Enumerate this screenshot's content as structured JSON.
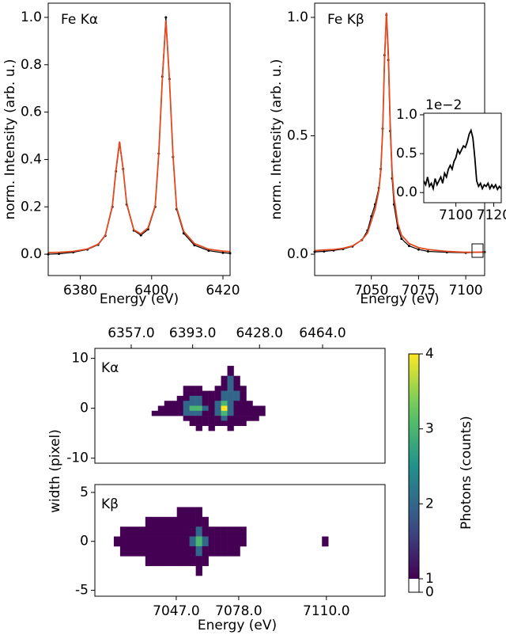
{
  "chart_data": [
    {
      "type": "line",
      "title": "Fe Kα",
      "xlabel": "Energy (eV)",
      "ylabel": "norm. Intensity (arb. u.)",
      "x": [
        6371,
        6374,
        6378,
        6382,
        6385,
        6387,
        6389,
        6390,
        6391,
        6392,
        6393,
        6395,
        6397,
        6399,
        6401,
        6402,
        6403,
        6404,
        6405,
        6406,
        6407,
        6409,
        6412,
        6416,
        6420,
        6422
      ],
      "series": [
        {
          "color": "#000000",
          "marker": "dot",
          "values": [
            0.0,
            0.002,
            0.008,
            0.02,
            0.04,
            0.078,
            0.2,
            0.35,
            0.465,
            0.36,
            0.21,
            0.1,
            0.08,
            0.105,
            0.2,
            0.425,
            0.75,
            1.0,
            0.74,
            0.41,
            0.19,
            0.088,
            0.038,
            0.015,
            0.006,
            0.004
          ]
        },
        {
          "color": "#e34a21",
          "values": [
            0.007,
            0.008,
            0.012,
            0.022,
            0.042,
            0.08,
            0.205,
            0.356,
            0.476,
            0.361,
            0.215,
            0.103,
            0.086,
            0.111,
            0.204,
            0.422,
            0.737,
            0.988,
            0.735,
            0.417,
            0.197,
            0.096,
            0.045,
            0.021,
            0.013,
            0.011
          ]
        }
      ],
      "xlim": [
        6371,
        6422
      ],
      "ylim": [
        -0.09,
        1.06
      ],
      "xticks": [
        6380,
        6400,
        6420
      ],
      "yticks": [
        {
          "value": 0,
          "label": "0.0"
        },
        0.2,
        0.4,
        0.6,
        0.8,
        {
          "value": 1,
          "label": "1.0"
        }
      ]
    },
    {
      "type": "line",
      "title": "Fe Kβ",
      "xlabel": "Energy (eV)",
      "ylabel": "norm. Intensity (arb. u.)",
      "x": [
        7020,
        7025,
        7030,
        7035,
        7040,
        7045,
        7048,
        7050,
        7052,
        7054,
        7055,
        7056,
        7057,
        7058,
        7059,
        7060,
        7061,
        7062,
        7064,
        7066,
        7070,
        7075,
        7080,
        7090,
        7100,
        7110
      ],
      "series": [
        {
          "color": "#000000",
          "marker": "dot",
          "values": [
            0.01,
            0.012,
            0.016,
            0.022,
            0.033,
            0.06,
            0.1,
            0.16,
            0.21,
            0.28,
            0.36,
            0.53,
            0.84,
            1.01,
            0.82,
            0.52,
            0.32,
            0.21,
            0.11,
            0.065,
            0.035,
            0.02,
            0.012,
            0.008,
            0.006,
            0.009
          ]
        },
        {
          "color": "#e34a21",
          "values": [
            0.015,
            0.018,
            0.02,
            0.025,
            0.035,
            0.06,
            0.09,
            0.14,
            0.19,
            0.27,
            0.35,
            0.52,
            0.82,
            1.02,
            0.85,
            0.55,
            0.35,
            0.24,
            0.13,
            0.08,
            0.045,
            0.028,
            0.02,
            0.012,
            0.008,
            0.009
          ]
        }
      ],
      "xlim": [
        7020,
        7110
      ],
      "ylim": [
        -0.09,
        1.06
      ],
      "xticks": [
        7050,
        7075,
        7100
      ],
      "yticks": [
        {
          "value": 0,
          "label": "0.0"
        },
        0.5,
        {
          "value": 1,
          "label": "1.0"
        }
      ]
    },
    {
      "type": "line",
      "offset_text": "1e−2",
      "x": [
        7083,
        7084,
        7085,
        7086,
        7087,
        7088,
        7089,
        7090,
        7091,
        7092,
        7093,
        7094,
        7095,
        7096,
        7097,
        7098,
        7099,
        7100,
        7101,
        7102,
        7103,
        7104,
        7105,
        7106,
        7107,
        7108,
        7109,
        7110,
        7111,
        7112,
        7113,
        7114,
        7115,
        7116,
        7117,
        7118,
        7119,
        7120,
        7121,
        7122,
        7123,
        7124
      ],
      "series": [
        {
          "color": "#000000",
          "values": [
            0.15,
            0.1,
            0.2,
            0.08,
            0.12,
            0.05,
            0.18,
            0.1,
            0.15,
            0.2,
            0.12,
            0.25,
            0.2,
            0.3,
            0.35,
            0.3,
            0.4,
            0.45,
            0.55,
            0.5,
            0.55,
            0.6,
            0.58,
            0.65,
            0.75,
            0.8,
            0.7,
            0.45,
            0.15,
            0.08,
            0.12,
            0.05,
            0.1,
            0.08,
            0.12,
            0.05,
            0.1,
            0.06,
            0.1,
            0.04,
            0.08,
            0.05
          ]
        }
      ],
      "xlim": [
        7083,
        7124
      ],
      "ylim": [
        -0.13,
        1.02
      ],
      "xticks": [
        7100,
        7120
      ],
      "yticks": [
        {
          "value": 0,
          "label": "0.0"
        },
        0.5,
        {
          "value": 1,
          "label": "1.0"
        }
      ]
    },
    {
      "type": "heatmap",
      "title": "Kα",
      "ylabel": "width (pixel)",
      "colormap": "viridis",
      "x": [
        9,
        10,
        11,
        12,
        13,
        14,
        15,
        16,
        17,
        18,
        19,
        20,
        21,
        22,
        23,
        24,
        25,
        26
      ],
      "y": [
        8,
        7,
        6,
        5,
        4,
        3,
        2,
        1,
        0,
        -1,
        -2,
        -3,
        -4
      ],
      "z": [
        [
          null,
          null,
          null,
          null,
          null,
          null,
          null,
          null,
          null,
          null,
          null,
          null,
          1,
          null,
          null,
          null,
          null,
          null
        ],
        [
          null,
          null,
          null,
          null,
          null,
          null,
          null,
          null,
          null,
          null,
          null,
          null,
          1,
          null,
          null,
          null,
          null,
          null
        ],
        [
          null,
          null,
          null,
          null,
          null,
          null,
          null,
          null,
          null,
          null,
          null,
          1,
          2,
          1,
          null,
          null,
          null,
          null
        ],
        [
          null,
          null,
          null,
          null,
          null,
          null,
          null,
          null,
          null,
          null,
          null,
          1,
          2,
          1,
          null,
          null,
          null,
          null
        ],
        [
          null,
          null,
          null,
          null,
          null,
          1,
          1,
          1,
          null,
          null,
          1,
          1,
          2,
          1,
          1,
          null,
          null,
          null
        ],
        [
          null,
          null,
          null,
          null,
          null,
          1,
          1,
          1,
          1,
          1,
          1,
          2,
          2,
          2,
          1,
          null,
          null,
          null
        ],
        [
          null,
          null,
          null,
          null,
          1,
          1,
          2,
          2,
          1,
          1,
          1,
          2,
          2,
          2,
          1,
          null,
          null,
          null
        ],
        [
          null,
          null,
          1,
          1,
          1,
          2,
          2,
          2,
          1,
          1,
          2,
          3,
          2,
          1,
          1,
          1,
          null,
          null
        ],
        [
          null,
          1,
          1,
          1,
          1,
          2,
          3,
          3,
          2,
          1,
          2,
          4,
          2,
          1,
          1,
          1,
          1,
          1
        ],
        [
          1,
          1,
          1,
          1,
          1,
          2,
          2,
          2,
          1,
          1,
          2,
          3,
          2,
          1,
          1,
          1,
          1,
          1
        ],
        [
          null,
          null,
          null,
          null,
          null,
          1,
          1,
          1,
          1,
          1,
          1,
          2,
          1,
          1,
          1,
          1,
          1,
          null
        ],
        [
          null,
          null,
          null,
          null,
          null,
          null,
          1,
          1,
          1,
          1,
          1,
          1,
          1,
          1,
          1,
          null,
          null,
          null
        ],
        [
          null,
          null,
          null,
          null,
          null,
          null,
          null,
          1,
          null,
          1,
          null,
          null,
          1,
          null,
          null,
          null,
          null,
          null
        ]
      ],
      "xlim": [
        0,
        46
      ],
      "ylim": [
        -11,
        12
      ],
      "xticks_position": "top",
      "xticks": [
        {
          "value": 5.76,
          "label": "6357.0"
        },
        {
          "value": 15.5,
          "label": "6393.0"
        },
        {
          "value": 26.1,
          "label": "6428.0"
        },
        {
          "value": 36.1,
          "label": "6464.0"
        }
      ],
      "yticks": [
        -10,
        0,
        10
      ]
    },
    {
      "type": "heatmap",
      "title": "Kβ",
      "xlabel": "Energy (eV)",
      "colormap": "viridis",
      "x": [
        3,
        4,
        5,
        6,
        7,
        8,
        9,
        10,
        11,
        12,
        13,
        14,
        15,
        16,
        17,
        18,
        19,
        20,
        21,
        22,
        23,
        24,
        25,
        26,
        27,
        28,
        29,
        30,
        31,
        32,
        33,
        34,
        35,
        36
      ],
      "y": [
        3,
        2,
        1,
        0,
        -1,
        -2,
        -3
      ],
      "z": [
        [
          null,
          null,
          null,
          null,
          null,
          null,
          null,
          null,
          null,
          null,
          1,
          1,
          1,
          1,
          null,
          null,
          null,
          null,
          null,
          null,
          null,
          null,
          null,
          null,
          null,
          null,
          null,
          null,
          null,
          null,
          null,
          null,
          null,
          null
        ],
        [
          null,
          null,
          null,
          null,
          null,
          1,
          1,
          1,
          1,
          1,
          1,
          1,
          1,
          1,
          1,
          null,
          null,
          null,
          null,
          null,
          null,
          null,
          null,
          null,
          null,
          null,
          null,
          null,
          null,
          null,
          null,
          null,
          null,
          null
        ],
        [
          null,
          1,
          1,
          1,
          1,
          1,
          1,
          1,
          1,
          1,
          1,
          1,
          1,
          2,
          1,
          1,
          1,
          1,
          1,
          1,
          1,
          null,
          null,
          null,
          null,
          null,
          null,
          null,
          null,
          null,
          null,
          null,
          null,
          null
        ],
        [
          1,
          1,
          1,
          1,
          1,
          1,
          1,
          1,
          1,
          1,
          1,
          1,
          2,
          3,
          2,
          1,
          1,
          1,
          1,
          1,
          1,
          null,
          null,
          null,
          null,
          null,
          null,
          null,
          null,
          null,
          null,
          null,
          null,
          1
        ],
        [
          null,
          1,
          1,
          1,
          1,
          1,
          1,
          1,
          1,
          1,
          1,
          1,
          1,
          2,
          1,
          1,
          1,
          1,
          1,
          1,
          null,
          null,
          null,
          null,
          null,
          null,
          null,
          null,
          null,
          null,
          null,
          null,
          null,
          null
        ],
        [
          null,
          null,
          null,
          null,
          null,
          1,
          1,
          1,
          1,
          1,
          1,
          1,
          1,
          1,
          1,
          null,
          null,
          null,
          null,
          null,
          null,
          null,
          null,
          null,
          null,
          null,
          null,
          null,
          null,
          null,
          null,
          null,
          null,
          null
        ],
        [
          null,
          null,
          null,
          null,
          null,
          null,
          null,
          null,
          null,
          null,
          null,
          null,
          null,
          1,
          null,
          null,
          null,
          null,
          null,
          null,
          null,
          null,
          null,
          null,
          null,
          null,
          null,
          null,
          null,
          null,
          null,
          null,
          null,
          null
        ]
      ],
      "xlim": [
        0,
        46
      ],
      "ylim": [
        -5.6,
        5.8
      ],
      "xticks_position": "bottom",
      "xticks": [
        {
          "value": 12.9,
          "label": "7047.0"
        },
        {
          "value": 22.8,
          "label": "7078.0"
        },
        {
          "value": 36.7,
          "label": "7110.0"
        }
      ],
      "yticks": [
        -5,
        0,
        5
      ]
    }
  ],
  "colorbar": {
    "label": "Photons (counts)",
    "clim": [
      1,
      4
    ],
    "ticks": [
      0,
      1,
      2,
      3,
      4
    ]
  }
}
